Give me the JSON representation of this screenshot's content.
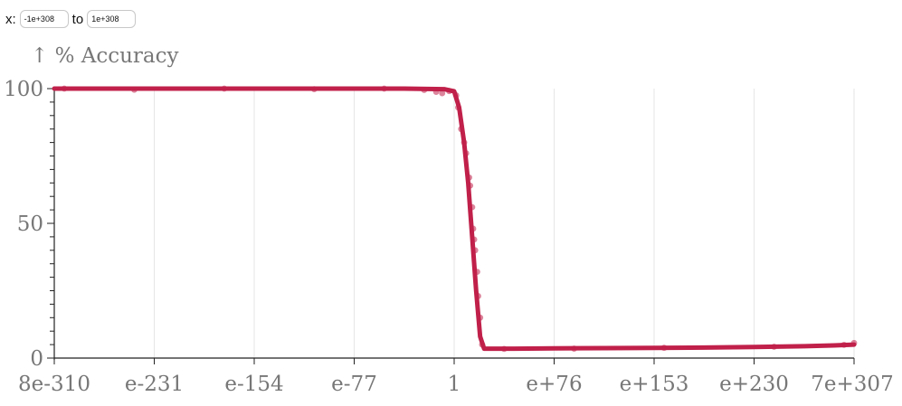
{
  "range": {
    "x_label": "x:",
    "to_label": "to",
    "from_value": "-1e+308",
    "to_value": "1e+308"
  },
  "colors": {
    "series": "#c0204a",
    "grid": "#e6e6e6",
    "axis": "#222222",
    "text": "#777777"
  },
  "chart_data": {
    "type": "line",
    "title": "",
    "xlabel": "",
    "ylabel": "↑ % Accuracy",
    "ylim": [
      0,
      100
    ],
    "y_ticks": [
      0,
      50,
      100
    ],
    "x_ticks": [
      "8e-310",
      "e-231",
      "e-154",
      "e-77",
      "1",
      "e+76",
      "e+153",
      "e+230",
      "7e+307"
    ],
    "grid": "vertical",
    "series": [
      {
        "name": "",
        "points": [
          [
            0,
            100
          ],
          [
            0.5,
            100
          ],
          [
            1,
            100
          ],
          [
            1.5,
            100
          ],
          [
            2,
            100
          ],
          [
            2.5,
            100
          ],
          [
            3,
            100
          ],
          [
            3.5,
            100
          ],
          [
            3.9,
            99.8
          ],
          [
            4.0,
            99
          ],
          [
            4.05,
            93
          ],
          [
            4.1,
            80
          ],
          [
            4.14,
            65
          ],
          [
            4.18,
            45
          ],
          [
            4.22,
            25
          ],
          [
            4.26,
            8
          ],
          [
            4.3,
            3.5
          ],
          [
            4.6,
            3.5
          ],
          [
            5,
            3.6
          ],
          [
            5.5,
            3.7
          ],
          [
            6,
            3.8
          ],
          [
            6.5,
            3.9
          ],
          [
            7,
            4.1
          ],
          [
            7.5,
            4.4
          ],
          [
            7.8,
            4.7
          ],
          [
            8,
            5
          ]
        ]
      }
    ],
    "scatter": [
      [
        0.1,
        100
      ],
      [
        0.8,
        99.6
      ],
      [
        1.7,
        100
      ],
      [
        2.6,
        99.8
      ],
      [
        3.3,
        100
      ],
      [
        3.7,
        99.5
      ],
      [
        3.82,
        98.8
      ],
      [
        3.88,
        98.3
      ],
      [
        3.95,
        99.1
      ],
      [
        4.02,
        97.5
      ],
      [
        4.04,
        93
      ],
      [
        4.07,
        85
      ],
      [
        4.1,
        80
      ],
      [
        4.12,
        76
      ],
      [
        4.15,
        67
      ],
      [
        4.16,
        64
      ],
      [
        4.18,
        56
      ],
      [
        4.19,
        48
      ],
      [
        4.2,
        44
      ],
      [
        4.21,
        40
      ],
      [
        4.23,
        32
      ],
      [
        4.24,
        23
      ],
      [
        4.26,
        15
      ],
      [
        4.28,
        5
      ],
      [
        4.5,
        3.4
      ],
      [
        5.2,
        3.5
      ],
      [
        6.1,
        3.8
      ],
      [
        7.2,
        4.2
      ],
      [
        7.9,
        4.9
      ],
      [
        8,
        5.6
      ]
    ]
  }
}
